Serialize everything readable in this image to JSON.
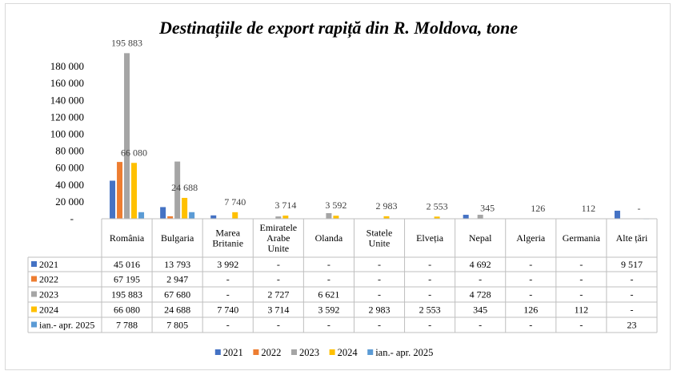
{
  "chart_data": {
    "type": "bar",
    "title": "Destinațiile de export rapiță din R. Moldova, tone",
    "categories": [
      "România",
      "Bulgaria",
      "Marea Britanie",
      "Emiratele Arabe Unite",
      "Olanda",
      "Statele Unite",
      "Elveția",
      "Nepal",
      "Algeria",
      "Germania",
      "Alte țări"
    ],
    "category_lines": [
      [
        "România"
      ],
      [
        "Bulgaria"
      ],
      [
        "Marea",
        "Britanie"
      ],
      [
        "Emiratele",
        "Arabe",
        "Unite"
      ],
      [
        "Olanda"
      ],
      [
        "Statele",
        "Unite"
      ],
      [
        "Elveția"
      ],
      [
        "Nepal"
      ],
      [
        "Algeria"
      ],
      [
        "Germania"
      ],
      [
        "Alte țări"
      ]
    ],
    "ylim": [
      0,
      200000
    ],
    "yticks": [
      0,
      20000,
      40000,
      60000,
      80000,
      100000,
      120000,
      140000,
      160000,
      180000
    ],
    "ytick_labels": [
      "-",
      "20 000",
      "40 000",
      "60 000",
      "80 000",
      "100 000",
      "120 000",
      "140 000",
      "160 000",
      "180 000"
    ],
    "legend_position": "bottom",
    "series": [
      {
        "name": "2021",
        "color": "#4472C4",
        "values": [
          45016,
          13793,
          3992,
          null,
          null,
          null,
          null,
          4692,
          null,
          null,
          9517
        ],
        "table": [
          "45 016",
          "13 793",
          "3 992",
          "-",
          "-",
          "-",
          "-",
          "4 692",
          "-",
          "-",
          "9 517"
        ]
      },
      {
        "name": "2022",
        "color": "#ED7D31",
        "values": [
          67195,
          2947,
          null,
          null,
          null,
          null,
          null,
          null,
          null,
          null,
          null
        ],
        "table": [
          "67 195",
          "2 947",
          "-",
          "-",
          "-",
          "-",
          "-",
          "-",
          "-",
          "-",
          "-"
        ]
      },
      {
        "name": "2023",
        "color": "#A5A5A5",
        "values": [
          195883,
          67680,
          null,
          2727,
          6621,
          null,
          null,
          4728,
          null,
          null,
          null
        ],
        "table": [
          "195 883",
          "67 680",
          "-",
          "2 727",
          "6 621",
          "-",
          "-",
          "4 728",
          "-",
          "-",
          "-"
        ]
      },
      {
        "name": "2024",
        "color": "#FFC000",
        "values": [
          66080,
          24688,
          7740,
          3714,
          3592,
          2983,
          2553,
          345,
          126,
          112,
          null
        ],
        "table": [
          "66 080",
          "24 688",
          "7 740",
          "3 714",
          "3 592",
          "2 983",
          "2 553",
          "345",
          "126",
          "112",
          "-"
        ]
      },
      {
        "name": "ian.- apr. 2025",
        "color": "#5B9BD5",
        "values": [
          7788,
          7805,
          null,
          null,
          null,
          null,
          null,
          null,
          null,
          null,
          23
        ],
        "table": [
          "7 788",
          "7 805",
          "-",
          "-",
          "-",
          "-",
          "-",
          "-",
          "-",
          "-",
          "23"
        ]
      }
    ],
    "data_labels": [
      {
        "category": 0,
        "series": 2,
        "text": "195 883"
      },
      {
        "category": 0,
        "series": 3,
        "text": "66 080"
      },
      {
        "category": 1,
        "series": 3,
        "text": "24 688"
      },
      {
        "category": 2,
        "series": 3,
        "text": "7 740"
      },
      {
        "category": 3,
        "series": 3,
        "text": "3 714"
      },
      {
        "category": 4,
        "series": 3,
        "text": "3 592"
      },
      {
        "category": 5,
        "series": 3,
        "text": "2 983"
      },
      {
        "category": 6,
        "series": 3,
        "text": "2 553"
      },
      {
        "category": 7,
        "series": 3,
        "text": "345"
      },
      {
        "category": 8,
        "series": 3,
        "text": "126"
      },
      {
        "category": 9,
        "series": 3,
        "text": "112"
      },
      {
        "category": 10,
        "series": 3,
        "text": "-"
      }
    ]
  }
}
